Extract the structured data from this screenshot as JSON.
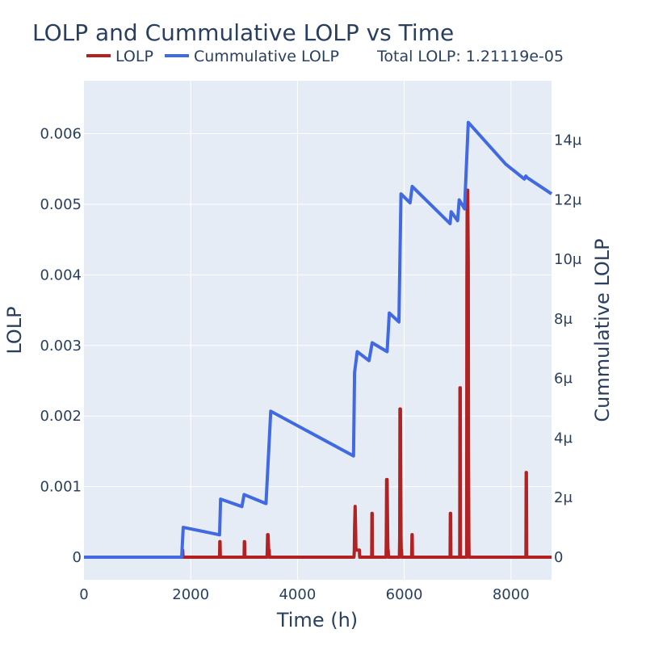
{
  "chart_data": {
    "type": "line",
    "title": "LOLP and Cummulative LOLP vs Time",
    "xlabel": "Time (h)",
    "ylabel": "LOLP",
    "y2label": "Cummulative LOLP",
    "annotation": "Total LOLP: 1.21119e-05",
    "xlim": [
      0,
      8760
    ],
    "ylim": [
      -0.00032,
      0.00675
    ],
    "y2lim": [
      -7.6e-07,
      1.6e-05
    ],
    "x_ticks": [
      0,
      2000,
      4000,
      6000,
      8000
    ],
    "x_tick_labels": [
      "0",
      "2000",
      "4000",
      "6000",
      "8000"
    ],
    "y_ticks": [
      0,
      0.001,
      0.002,
      0.003,
      0.004,
      0.005,
      0.006
    ],
    "y_tick_labels": [
      "0",
      "0.001",
      "0.002",
      "0.003",
      "0.004",
      "0.005",
      "0.006"
    ],
    "y2_ticks": [
      0,
      2e-06,
      4e-06,
      6e-06,
      8e-06,
      1e-05,
      1.2e-05,
      1.4e-05
    ],
    "y2_tick_labels": [
      "0",
      "2μ",
      "4μ",
      "6μ",
      "8μ",
      "10μ",
      "12μ",
      "14μ"
    ],
    "grid": true,
    "legend_position": "top",
    "series": [
      {
        "name": "LOLP",
        "axis": "left",
        "color": "#b22222",
        "x": [
          0,
          1840,
          1845,
          1850,
          1855,
          2540,
          2545,
          2550,
          2555,
          3000,
          3005,
          3010,
          3015,
          3430,
          3435,
          3440,
          3450,
          3460,
          3465,
          3470,
          3475,
          5060,
          5065,
          5070,
          5080,
          5090,
          5095,
          5100,
          5110,
          5150,
          5155,
          5160,
          5165,
          5390,
          5395,
          5400,
          5405,
          5660,
          5665,
          5670,
          5680,
          5690,
          5695,
          5700,
          5705,
          5910,
          5915,
          5920,
          5930,
          5940,
          5945,
          5950,
          5955,
          6140,
          6145,
          6150,
          6155,
          6860,
          6865,
          6870,
          6875,
          7040,
          7045,
          7050,
          7055,
          7170,
          7175,
          7180,
          7190,
          7200,
          7205,
          7210,
          7215,
          8280,
          8285,
          8290,
          8295,
          8760
        ],
        "y": [
          0,
          0,
          0.0001,
          0.0001,
          0,
          0,
          0.00022,
          0.00022,
          0,
          0,
          0.00022,
          0.00022,
          0,
          0,
          0.0001,
          0.00032,
          0.00032,
          0.0001,
          0.0001,
          0.0001,
          0,
          0,
          0.0001,
          0.0004,
          0.00072,
          0.0004,
          0.0001,
          0.0001,
          0.0001,
          0.0001,
          0.0001,
          0.0001,
          0,
          0,
          0.00062,
          0.00062,
          0,
          0,
          0.0003,
          0.0011,
          0.0011,
          0.0003,
          0.0001,
          0.0001,
          0,
          0,
          0.0003,
          0.0021,
          0.0021,
          0.0003,
          0.0001,
          0.0001,
          0,
          0,
          0.00032,
          0.00032,
          0,
          0,
          0.00062,
          0.00062,
          0,
          0,
          0.0024,
          0.0024,
          0,
          0,
          0.0039,
          0.0052,
          0.0052,
          0.0042,
          0.0015,
          0.0003,
          0,
          0,
          0.0012,
          0.0012,
          0,
          0
        ]
      },
      {
        "name": "Cummulative LOLP",
        "axis": "right",
        "color": "#4169e1",
        "x": [
          0,
          1830,
          1860,
          2540,
          2560,
          2960,
          3000,
          3410,
          3500,
          5050,
          5070,
          5120,
          5340,
          5400,
          5680,
          5720,
          5900,
          5940,
          6110,
          6150,
          6860,
          6880,
          7000,
          7030,
          7130,
          7200,
          7900,
          8250,
          8280,
          8300,
          8760
        ],
        "y": [
          0,
          0,
          1e-06,
          7.5e-07,
          1.95e-06,
          1.7e-06,
          2.1e-06,
          1.8e-06,
          4.9e-06,
          3.4e-06,
          6.2e-06,
          6.9e-06,
          6.6e-06,
          7.2e-06,
          6.9e-06,
          8.2e-06,
          7.9e-06,
          1.22e-05,
          1.19e-05,
          1.245e-05,
          1.12e-05,
          1.16e-05,
          1.13e-05,
          1.2e-05,
          1.17e-05,
          1.46e-05,
          1.32e-05,
          1.27e-05,
          1.28e-05,
          1.275e-05,
          1.22e-05
        ]
      }
    ]
  }
}
